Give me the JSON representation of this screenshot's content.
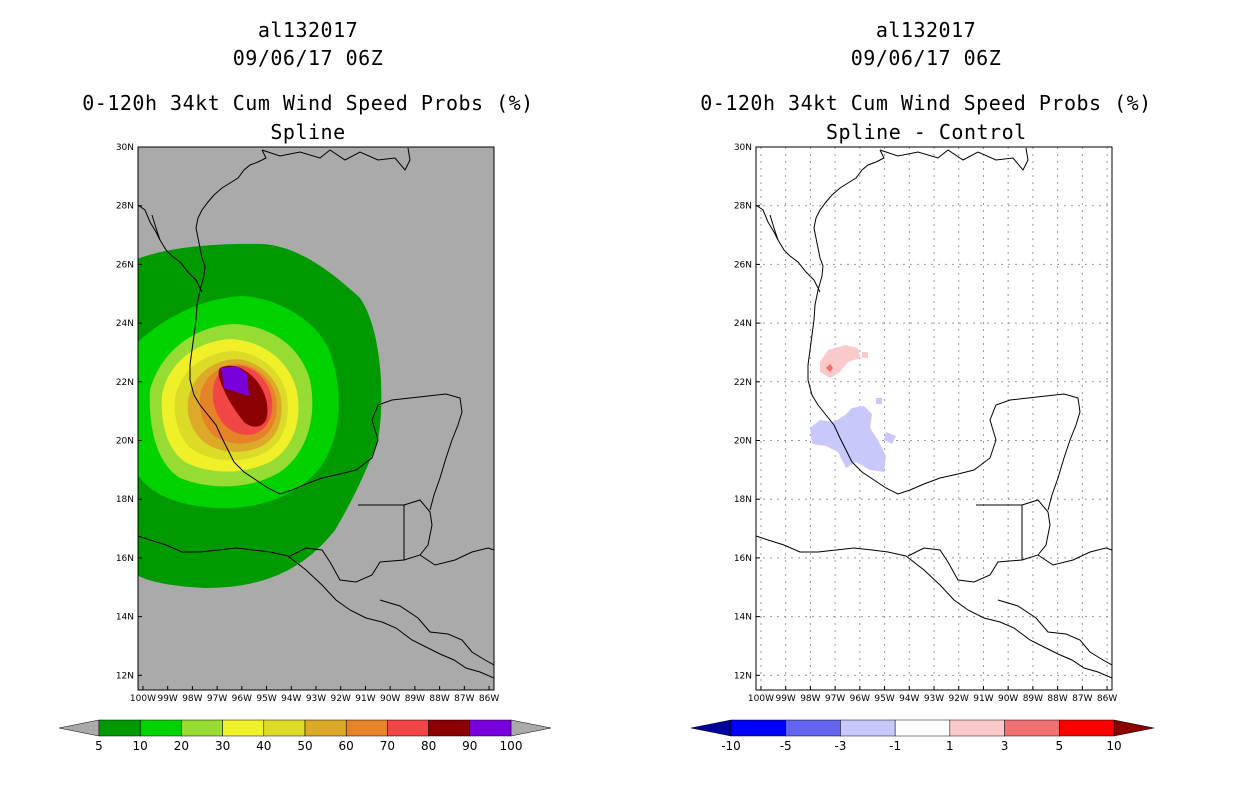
{
  "panels": [
    {
      "storm_id": "al132017",
      "datetime": "09/06/17 06Z",
      "product": "0-120h 34kt Cum Wind Speed Probs (%)",
      "subtitle": "Spline",
      "background_color": "#aaaaaa",
      "grid": false
    },
    {
      "storm_id": "al132017",
      "datetime": "09/06/17 06Z",
      "product": "0-120h 34kt Cum Wind Speed Probs (%)",
      "subtitle": "Spline - Control",
      "background_color": "#ffffff",
      "grid": true
    }
  ],
  "lat_labels": [
    "30N",
    "28N",
    "26N",
    "24N",
    "22N",
    "20N",
    "18N",
    "16N",
    "14N",
    "12N"
  ],
  "lon_labels": [
    "100W",
    "99W",
    "98W",
    "97W",
    "96W",
    "95W",
    "94W",
    "93W",
    "92W",
    "91W",
    "90W",
    "89W",
    "88W",
    "87W",
    "86W"
  ],
  "colorbar_left": {
    "labels": [
      "5",
      "10",
      "20",
      "30",
      "40",
      "50",
      "60",
      "70",
      "80",
      "90",
      "100"
    ],
    "colors": [
      "#009a00",
      "#00d200",
      "#96dc32",
      "#f0f028",
      "#dcdc28",
      "#dcaa28",
      "#e68228",
      "#f04646",
      "#8b0000",
      "#7800dc"
    ],
    "end_color": "#aaaaaa"
  },
  "colorbar_right": {
    "labels": [
      "-10",
      "-5",
      "-3",
      "-1",
      "1",
      "3",
      "5",
      "10"
    ],
    "colors": [
      "#0000ff",
      "#6464f0",
      "#c8c8fa",
      "#ffffff",
      "#facaca",
      "#f07070",
      "#ff0000"
    ],
    "low_end_color": "#00009b",
    "high_end_color": "#8b0000"
  },
  "chart_data": [
    {
      "type": "heatmap",
      "title": "0-120h 34kt Cum Wind Speed Probs (%) Spline",
      "lon_range": [
        -100.2,
        -85.8
      ],
      "lat_range": [
        11.5,
        30
      ],
      "center_lon": -95.5,
      "center_lat": 21.4,
      "contours": [
        {
          "level": 5,
          "color": "#009a00"
        },
        {
          "level": 10,
          "color": "#00d200"
        },
        {
          "level": 20,
          "color": "#96dc32"
        },
        {
          "level": 30,
          "color": "#f0f028"
        },
        {
          "level": 40,
          "color": "#dcdc28"
        },
        {
          "level": 50,
          "color": "#dcaa28"
        },
        {
          "level": 60,
          "color": "#e68228"
        },
        {
          "level": 70,
          "color": "#f04646"
        },
        {
          "level": 80,
          "color": "#8b0000"
        },
        {
          "level": 90,
          "color": "#7800dc"
        }
      ]
    },
    {
      "type": "heatmap",
      "title": "0-120h 34kt Cum Wind Speed Probs (%) Spline - Control",
      "lon_range": [
        -100.2,
        -85.8
      ],
      "lat_range": [
        11.5,
        30
      ],
      "anomalies": [
        {
          "sign": "positive",
          "center_lon": -96.5,
          "center_lat": 22.6,
          "range": "1 to 3"
        },
        {
          "sign": "positive_peak",
          "center_lon": -96.8,
          "center_lat": 22.4,
          "range": "3 to 5"
        },
        {
          "sign": "negative",
          "center_lon": -95.8,
          "center_lat": 20.2,
          "range": "-3 to -1"
        }
      ]
    }
  ]
}
